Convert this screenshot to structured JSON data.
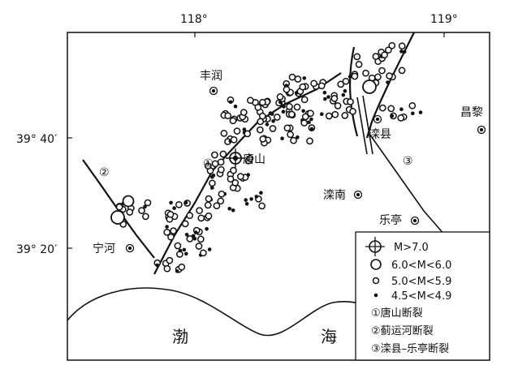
{
  "map": {
    "longitude_ticks": [
      "118°",
      "119°"
    ],
    "latitude_ticks": [
      "39° 40′",
      "39° 20′"
    ],
    "cities": [
      {
        "name": "丰润"
      },
      {
        "name": "唐山"
      },
      {
        "name": "滦县"
      },
      {
        "name": "昌黎"
      },
      {
        "name": "滦南"
      },
      {
        "name": "乐亭"
      },
      {
        "name": "宁河"
      }
    ],
    "fault_markers": [
      "①",
      "②",
      "③"
    ],
    "sea_labels": [
      "渤",
      "海"
    ]
  },
  "legend": {
    "items": [
      {
        "label": "M>7.0",
        "symbol": "crosshair-circle-icon"
      },
      {
        "label": "6.0<M<6.0",
        "symbol": "large-circle-icon"
      },
      {
        "label": "5.0<M<5.9",
        "symbol": "small-circle-icon"
      },
      {
        "label": "4.5<M<4.9",
        "symbol": "dot-icon"
      },
      {
        "label": "①唐山断裂",
        "symbol": ""
      },
      {
        "label": "②蓟运河断裂",
        "symbol": ""
      },
      {
        "label": "③滦县–乐亭断裂",
        "symbol": ""
      }
    ]
  }
}
